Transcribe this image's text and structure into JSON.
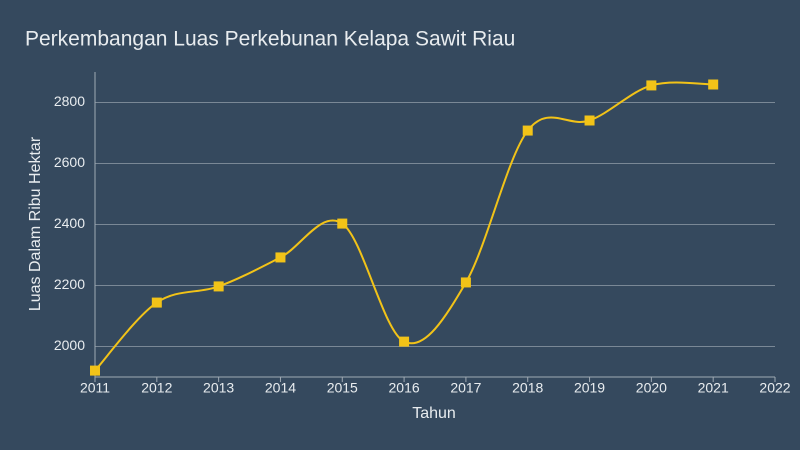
{
  "chart_data": {
    "type": "line",
    "title": "Perkembangan Luas Perkebunan Kelapa Sawit Riau",
    "x_label": "Tahun",
    "y_label": "Luas Dalam Ribu Hektar",
    "x": [
      2011,
      2012,
      2013,
      2014,
      2015,
      2016,
      2017,
      2018,
      2019,
      2020,
      2021
    ],
    "series": [
      {
        "name": "Luas",
        "color": "#f2c318",
        "values": [
          1921,
          2144,
          2197,
          2292,
          2403,
          2016,
          2210,
          2708,
          2741,
          2856,
          2859
        ]
      }
    ],
    "xlim": [
      2011,
      2022
    ],
    "xticks": [
      2011,
      2012,
      2013,
      2014,
      2015,
      2016,
      2017,
      2018,
      2019,
      2020,
      2021,
      2022
    ],
    "ylim": [
      1900,
      2900
    ],
    "yticks": [
      2000,
      2200,
      2400,
      2600,
      2800
    ],
    "grid": true,
    "smooth": true
  }
}
